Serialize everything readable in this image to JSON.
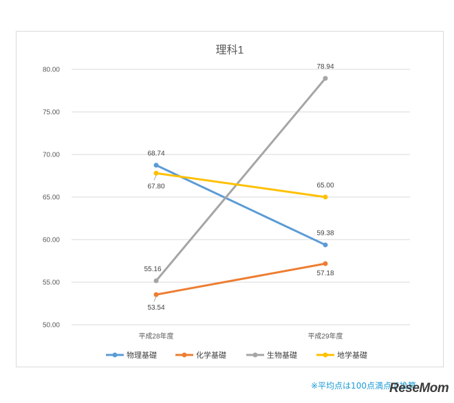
{
  "chart_data": {
    "type": "line",
    "title": "理科1",
    "categories": [
      "平成28年度",
      "平成29年度"
    ],
    "ylim": [
      50,
      80
    ],
    "yticks": [
      "50.00",
      "55.00",
      "60.00",
      "65.00",
      "70.00",
      "75.00",
      "80.00"
    ],
    "grid": true,
    "legend_placement": "bottom",
    "series": [
      {
        "name": "物理基礎",
        "values": [
          68.74,
          59.38
        ],
        "labels": [
          "68.74",
          "59.38"
        ],
        "color": "#5b9bd5"
      },
      {
        "name": "化学基礎",
        "values": [
          53.54,
          57.18
        ],
        "labels": [
          "53.54",
          "57.18"
        ],
        "color": "#ed7d31"
      },
      {
        "name": "生物基礎",
        "values": [
          55.16,
          78.94
        ],
        "labels": [
          "55.16",
          "78.94"
        ],
        "color": "#a5a5a5"
      },
      {
        "name": "地学基礎",
        "values": [
          67.8,
          65.0
        ],
        "labels": [
          "67.80",
          "65.00"
        ],
        "color": "#ffc000"
      }
    ]
  },
  "footnote": "※平均点は100点満点で換算",
  "brand": "ReseMom"
}
